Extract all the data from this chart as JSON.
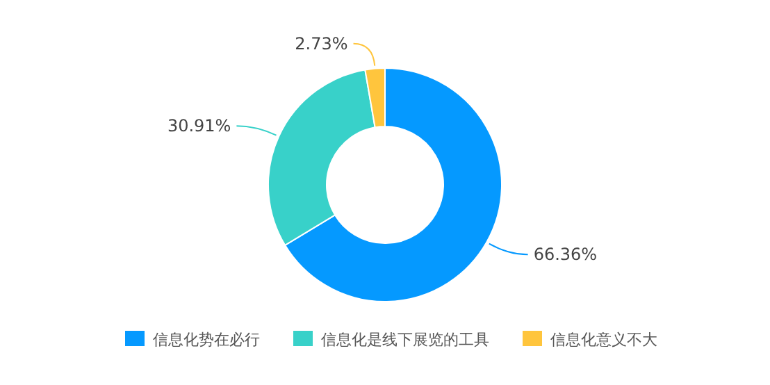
{
  "chart_data": {
    "type": "donut",
    "categories": [
      "信息化势在必行",
      "信息化是线下展览的工具",
      "信息化意义不大"
    ],
    "values": [
      66.36,
      30.91,
      2.73
    ],
    "colors": [
      "#0599ff",
      "#38d1c9",
      "#ffc53d"
    ],
    "value_labels": [
      "66.36%",
      "30.91%",
      "2.73%"
    ],
    "legend": "bottom"
  }
}
